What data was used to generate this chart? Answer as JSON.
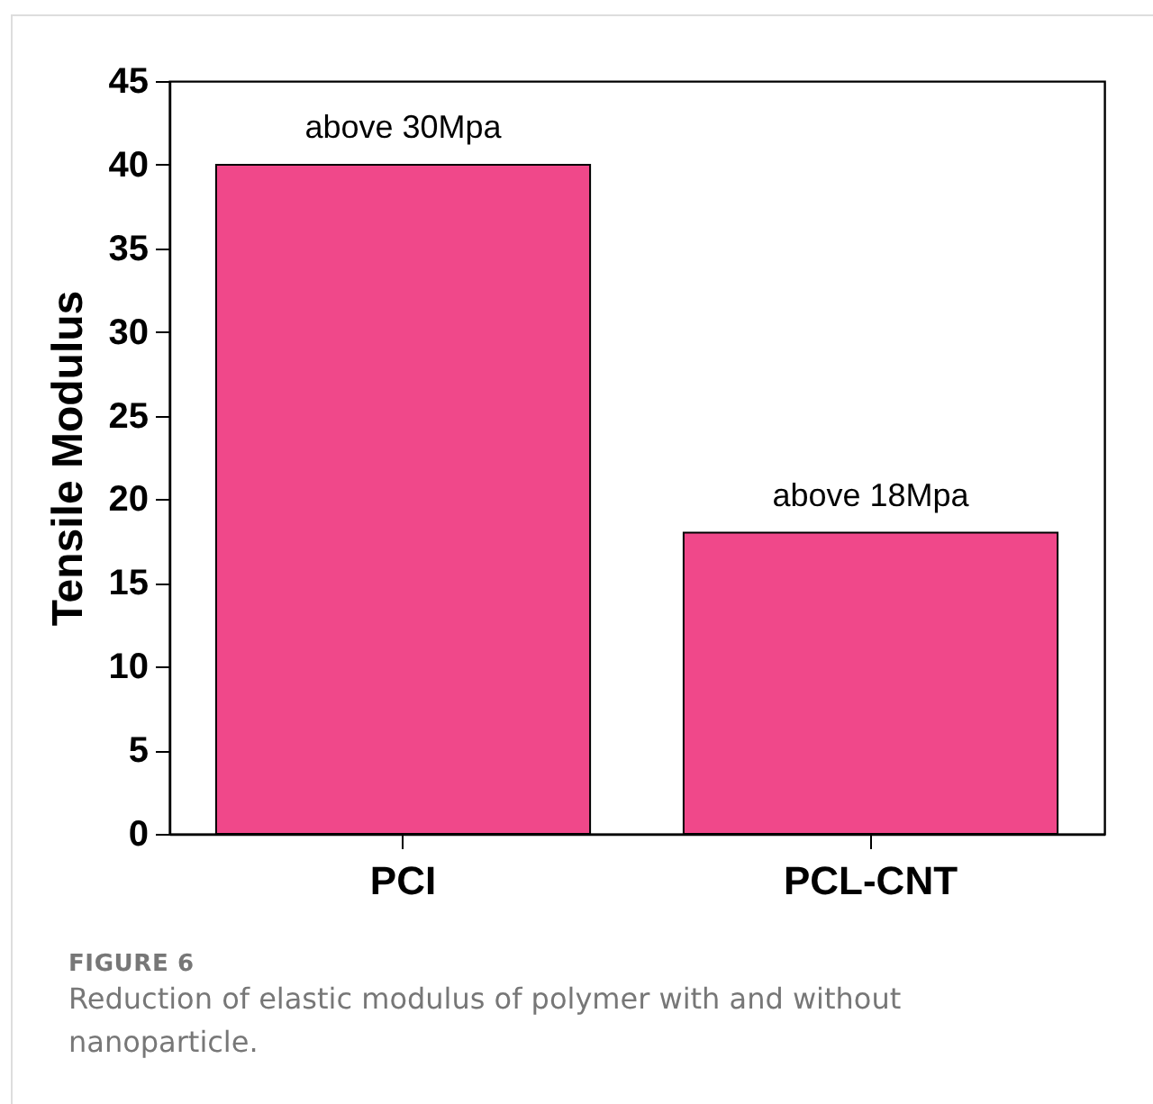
{
  "chart_data": {
    "type": "bar",
    "ylabel": "Tensile Modulus",
    "categories": [
      "PCI",
      "PCL-CNT"
    ],
    "values": [
      40,
      18
    ],
    "color": "#f0488a",
    "value_labels": [
      "above 30Mpa",
      "above 18Mpa"
    ],
    "ylim": [
      0,
      45
    ],
    "yticks": [
      0,
      5,
      10,
      15,
      20,
      25,
      30,
      35,
      40,
      45
    ],
    "annotations": [
      "FIGURE 6",
      "Reduction of elastic modulus of polymer with and without nanoparticle."
    ]
  }
}
